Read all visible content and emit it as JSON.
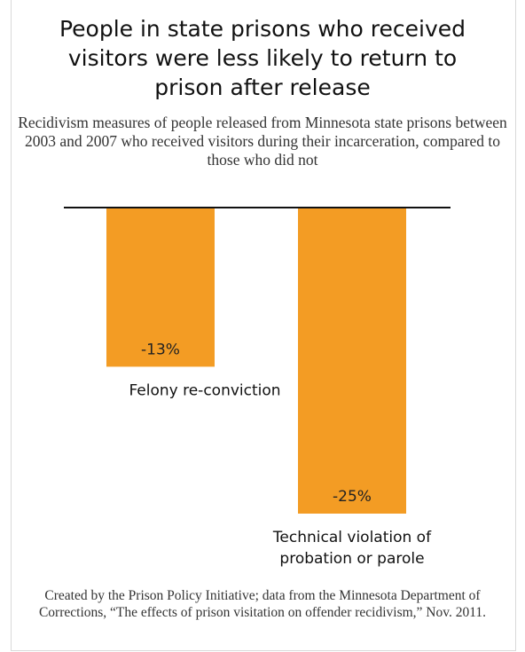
{
  "title": "People in state prisons who received visitors were less likely to return to prison after release",
  "subtitle": "Recidivism measures of people released from Minnesota state prisons between 2003 and 2007 who received visitors during their incarceration, compared to those who did not",
  "credit": "Created by the Prison Policy Initiative; data from the Minnesota Department of Corrections, “The effects of prison visitation on offender recidivism,” Nov. 2011.",
  "colors": {
    "bar": "#F39C24",
    "axis": "#111111"
  },
  "chart_data": {
    "type": "bar",
    "orientation": "vertical",
    "categories": [
      "Felony re-conviction",
      "Technical violation of probation or parole"
    ],
    "values": [
      -13,
      -25
    ],
    "data_labels": [
      "-13%",
      "-25%"
    ],
    "ylim": [
      -25,
      0
    ],
    "grid": false,
    "legend": "none"
  }
}
